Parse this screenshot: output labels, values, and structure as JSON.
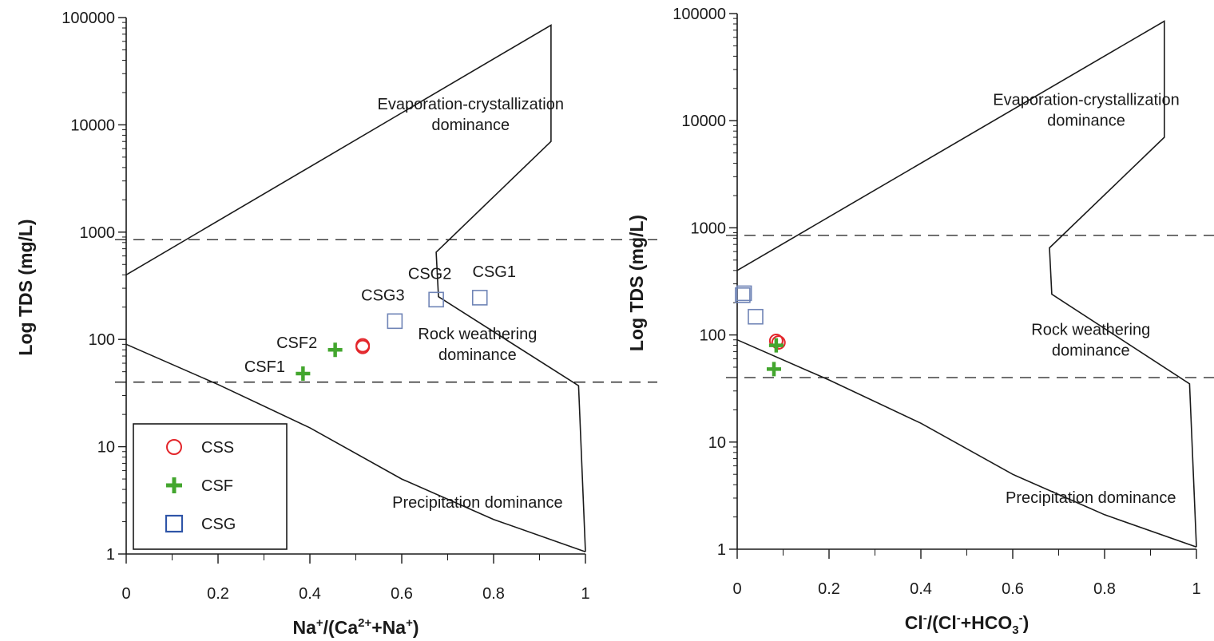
{
  "figure_title": "",
  "colors": {
    "CSS": "#e3262b",
    "CSF": "#43a62e",
    "CSG": "#6f84b6",
    "line": "#1a1a1a"
  },
  "legend": [
    {
      "key": "CSS",
      "label": "CSS",
      "marker": "circle"
    },
    {
      "key": "CSF",
      "label": "CSF",
      "marker": "plus"
    },
    {
      "key": "CSG",
      "label": "CSG",
      "marker": "square"
    }
  ],
  "chart_data": [
    {
      "type": "scatter",
      "title": "",
      "xlabel": {
        "main": "Na",
        "sup1": "+",
        "mid1": "/(Ca",
        "sup2": "2+",
        "mid2": "+Na",
        "sup3": "+",
        "end": ")"
      },
      "ylabel": "Log TDS (mg/L)",
      "xlim": [
        0,
        1
      ],
      "ylim": [
        1,
        100000
      ],
      "yscale": "log",
      "x_ticks": [
        "0",
        "0.2",
        "0.4",
        "0.6",
        "0.8",
        "1"
      ],
      "y_ticks": [
        "1",
        "10",
        "100",
        "1000",
        "10000",
        "100000"
      ],
      "boundary_outer": [
        [
          0,
          400
        ],
        [
          0.925,
          85000
        ],
        [
          0.925,
          7000
        ],
        [
          0.675,
          650
        ],
        [
          0.68,
          250
        ],
        [
          0.985,
          37
        ],
        [
          1,
          1.05
        ]
      ],
      "boundary_lower": [
        [
          0,
          90
        ],
        [
          0.2,
          38
        ],
        [
          0.4,
          15
        ],
        [
          0.6,
          5
        ],
        [
          0.8,
          2.1
        ],
        [
          1,
          1.05
        ]
      ],
      "dashed_lines": [
        850,
        40
      ],
      "region_labels": [
        {
          "lines": [
            "Evaporation-crystallization",
            "dominance"
          ],
          "x": 0.75,
          "y": 14000
        },
        {
          "lines": [
            "Rock weathering",
            "dominance"
          ],
          "x": 0.765,
          "y": 100
        },
        {
          "lines": [
            "Precipitation dominance"
          ],
          "x": 0.765,
          "y": 2.7
        }
      ],
      "series": [
        {
          "name": "CSS",
          "points": [
            {
              "x": 0.515,
              "y": 88,
              "label": ""
            },
            {
              "x": 0.515,
              "y": 85,
              "label": ""
            }
          ]
        },
        {
          "name": "CSF",
          "points": [
            {
              "x": 0.455,
              "y": 80,
              "label": "CSF2"
            },
            {
              "x": 0.385,
              "y": 48,
              "label": "CSF1"
            }
          ]
        },
        {
          "name": "CSG",
          "points": [
            {
              "x": 0.77,
              "y": 245,
              "label": "CSG1"
            },
            {
              "x": 0.675,
              "y": 235,
              "label": "CSG2"
            },
            {
              "x": 0.585,
              "y": 148,
              "label": "CSG3"
            }
          ]
        }
      ]
    },
    {
      "type": "scatter",
      "title": "",
      "xlabel": {
        "main": "Cl",
        "sup1": "-",
        "mid1": "/(Cl",
        "sup2": "-",
        "mid2": "+HCO",
        "sub3": "3",
        "sup3": "-",
        "end": ")"
      },
      "ylabel": "Log TDS (mg/L)",
      "xlim": [
        0,
        1
      ],
      "ylim": [
        1,
        100000
      ],
      "yscale": "log",
      "x_ticks": [
        "0",
        "0.2",
        "0.4",
        "0.6",
        "0.8",
        "1"
      ],
      "y_ticks": [
        "1",
        "10",
        "100",
        "1000",
        "10000",
        "100000"
      ],
      "boundary_outer": [
        [
          0,
          400
        ],
        [
          0.93,
          85000
        ],
        [
          0.93,
          7000
        ],
        [
          0.68,
          650
        ],
        [
          0.685,
          240
        ],
        [
          0.985,
          35
        ],
        [
          1,
          1.05
        ]
      ],
      "boundary_lower": [
        [
          0,
          90
        ],
        [
          0.2,
          38
        ],
        [
          0.4,
          15
        ],
        [
          0.6,
          5
        ],
        [
          0.8,
          2.1
        ],
        [
          1,
          1.05
        ]
      ],
      "dashed_lines": [
        850,
        40
      ],
      "region_labels": [
        {
          "lines": [
            "Evaporation-crystallization",
            "dominance"
          ],
          "x": 0.76,
          "y": 14000
        },
        {
          "lines": [
            "Rock weathering",
            "dominance"
          ],
          "x": 0.77,
          "y": 100
        },
        {
          "lines": [
            "Precipitation dominance"
          ],
          "x": 0.77,
          "y": 2.7
        }
      ],
      "series": [
        {
          "name": "CSS",
          "points": [
            {
              "x": 0.085,
              "y": 88,
              "label": ""
            },
            {
              "x": 0.09,
              "y": 85,
              "label": ""
            }
          ]
        },
        {
          "name": "CSF",
          "points": [
            {
              "x": 0.085,
              "y": 80,
              "label": ""
            },
            {
              "x": 0.08,
              "y": 48,
              "label": ""
            }
          ]
        },
        {
          "name": "CSG",
          "points": [
            {
              "x": 0.015,
              "y": 245,
              "label": ""
            },
            {
              "x": 0.012,
              "y": 235,
              "label": ""
            },
            {
              "x": 0.04,
              "y": 148,
              "label": ""
            }
          ]
        }
      ]
    }
  ]
}
